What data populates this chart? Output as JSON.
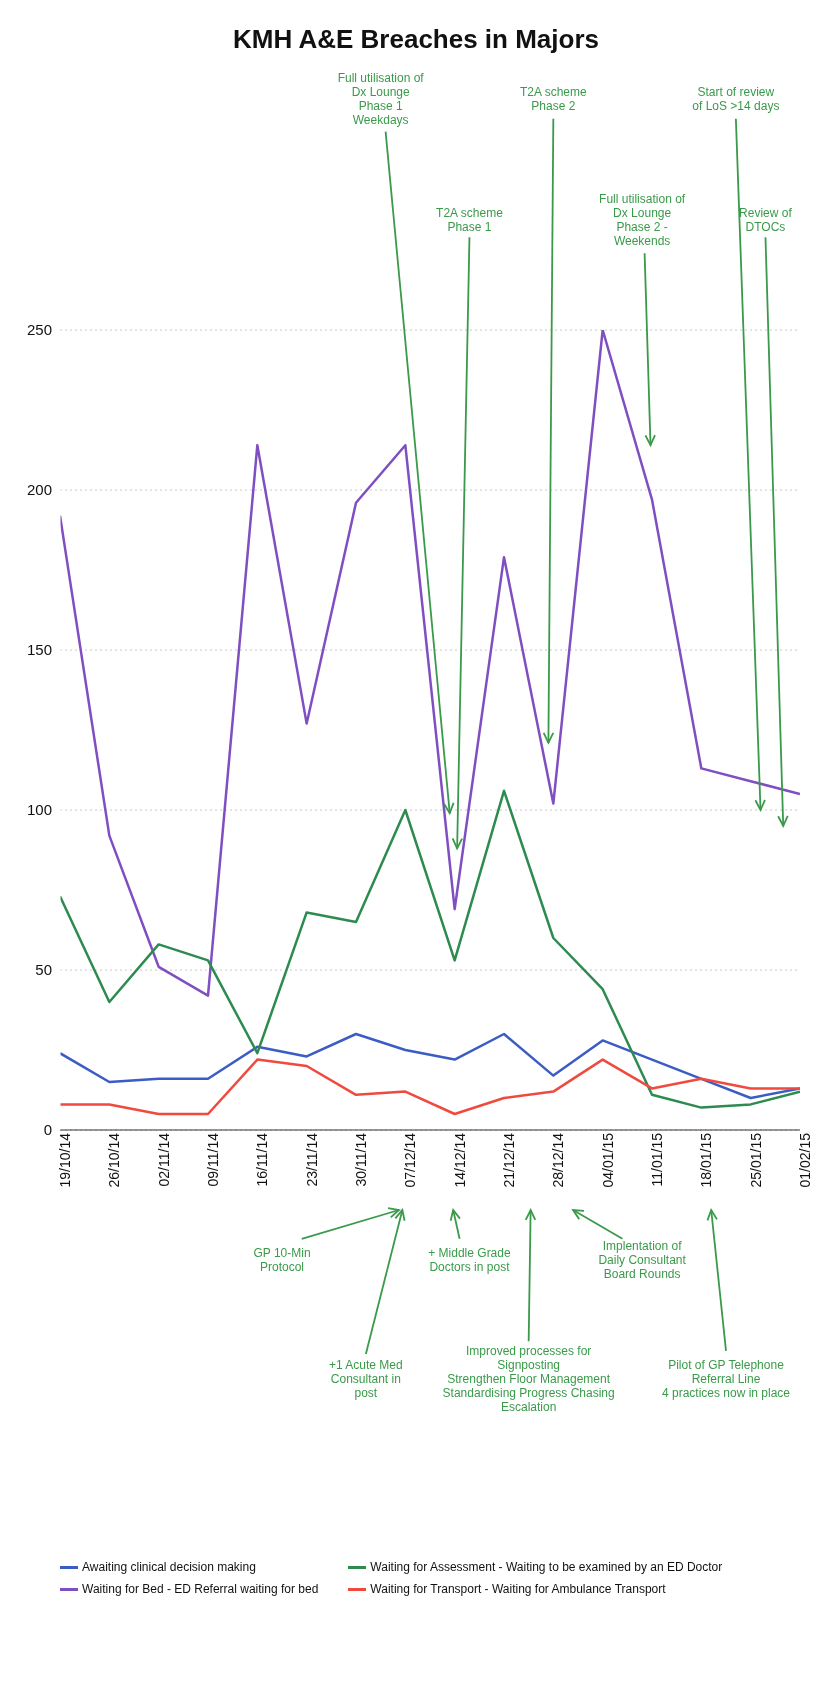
{
  "chart_data": {
    "type": "line",
    "title": "KMH A&E Breaches in Majors",
    "categories": [
      "19/10/14",
      "26/10/14",
      "02/11/14",
      "09/11/14",
      "16/11/14",
      "23/11/14",
      "30/11/14",
      "07/12/14",
      "14/12/14",
      "21/12/14",
      "28/12/14",
      "04/01/15",
      "11/01/15",
      "18/01/15",
      "25/01/15",
      "01/02/15"
    ],
    "series": [
      {
        "name": "Awaiting clinical decision making",
        "color": "#3b5cc4",
        "values": [
          24,
          15,
          16,
          16,
          26,
          23,
          30,
          25,
          22,
          30,
          17,
          28,
          22,
          16,
          10,
          13
        ]
      },
      {
        "name": "Waiting for Bed - ED Referral waiting for bed",
        "color": "#7f4fc2",
        "values": [
          192,
          92,
          51,
          42,
          214,
          127,
          196,
          214,
          69,
          179,
          102,
          250,
          197,
          113,
          109,
          105
        ]
      },
      {
        "name": "Waiting for Assessment - Waiting to be examined by an ED Doctor",
        "color": "#2e8b50",
        "values": [
          73,
          40,
          58,
          53,
          24,
          68,
          65,
          100,
          53,
          106,
          60,
          44,
          11,
          7,
          8,
          12
        ]
      },
      {
        "name": "Waiting for Transport - Waiting for Ambulance Transport",
        "color": "#f04a3e",
        "values": [
          8,
          8,
          5,
          5,
          22,
          20,
          11,
          12,
          5,
          10,
          12,
          22,
          13,
          16,
          13,
          13
        ]
      }
    ],
    "ylim": [
      0,
      250
    ],
    "yticks": [
      0,
      50,
      100,
      150,
      200,
      250
    ],
    "grid": "y",
    "legend": "bottom",
    "marker": "none",
    "line_style": "solid",
    "annotations": [
      "Full utilisation of\nDx Lounge\nPhase 1\nWeekdays",
      "T2A scheme\nPhase 1",
      "T2A scheme\nPhase 2",
      "Full utilisation of\nDx Lounge\nPhase 2 -\nWeekends",
      "Start of review\nof LoS >14 days",
      "Review of\nDTOCs",
      "Pilot of GP Telephone\nReferral Line\n4 practices now in place",
      "Implentation of\nDaily Consultant\nBoard Rounds",
      "Improved processes for\nSignposting\nStrengthen Floor Management\nStandardising Progress Chasing\nEscalation",
      "+ Middle Grade\nDoctors in post",
      "+1 Acute Med\nConsultant in\npost",
      "GP 10-Min\nProtocol"
    ]
  }
}
